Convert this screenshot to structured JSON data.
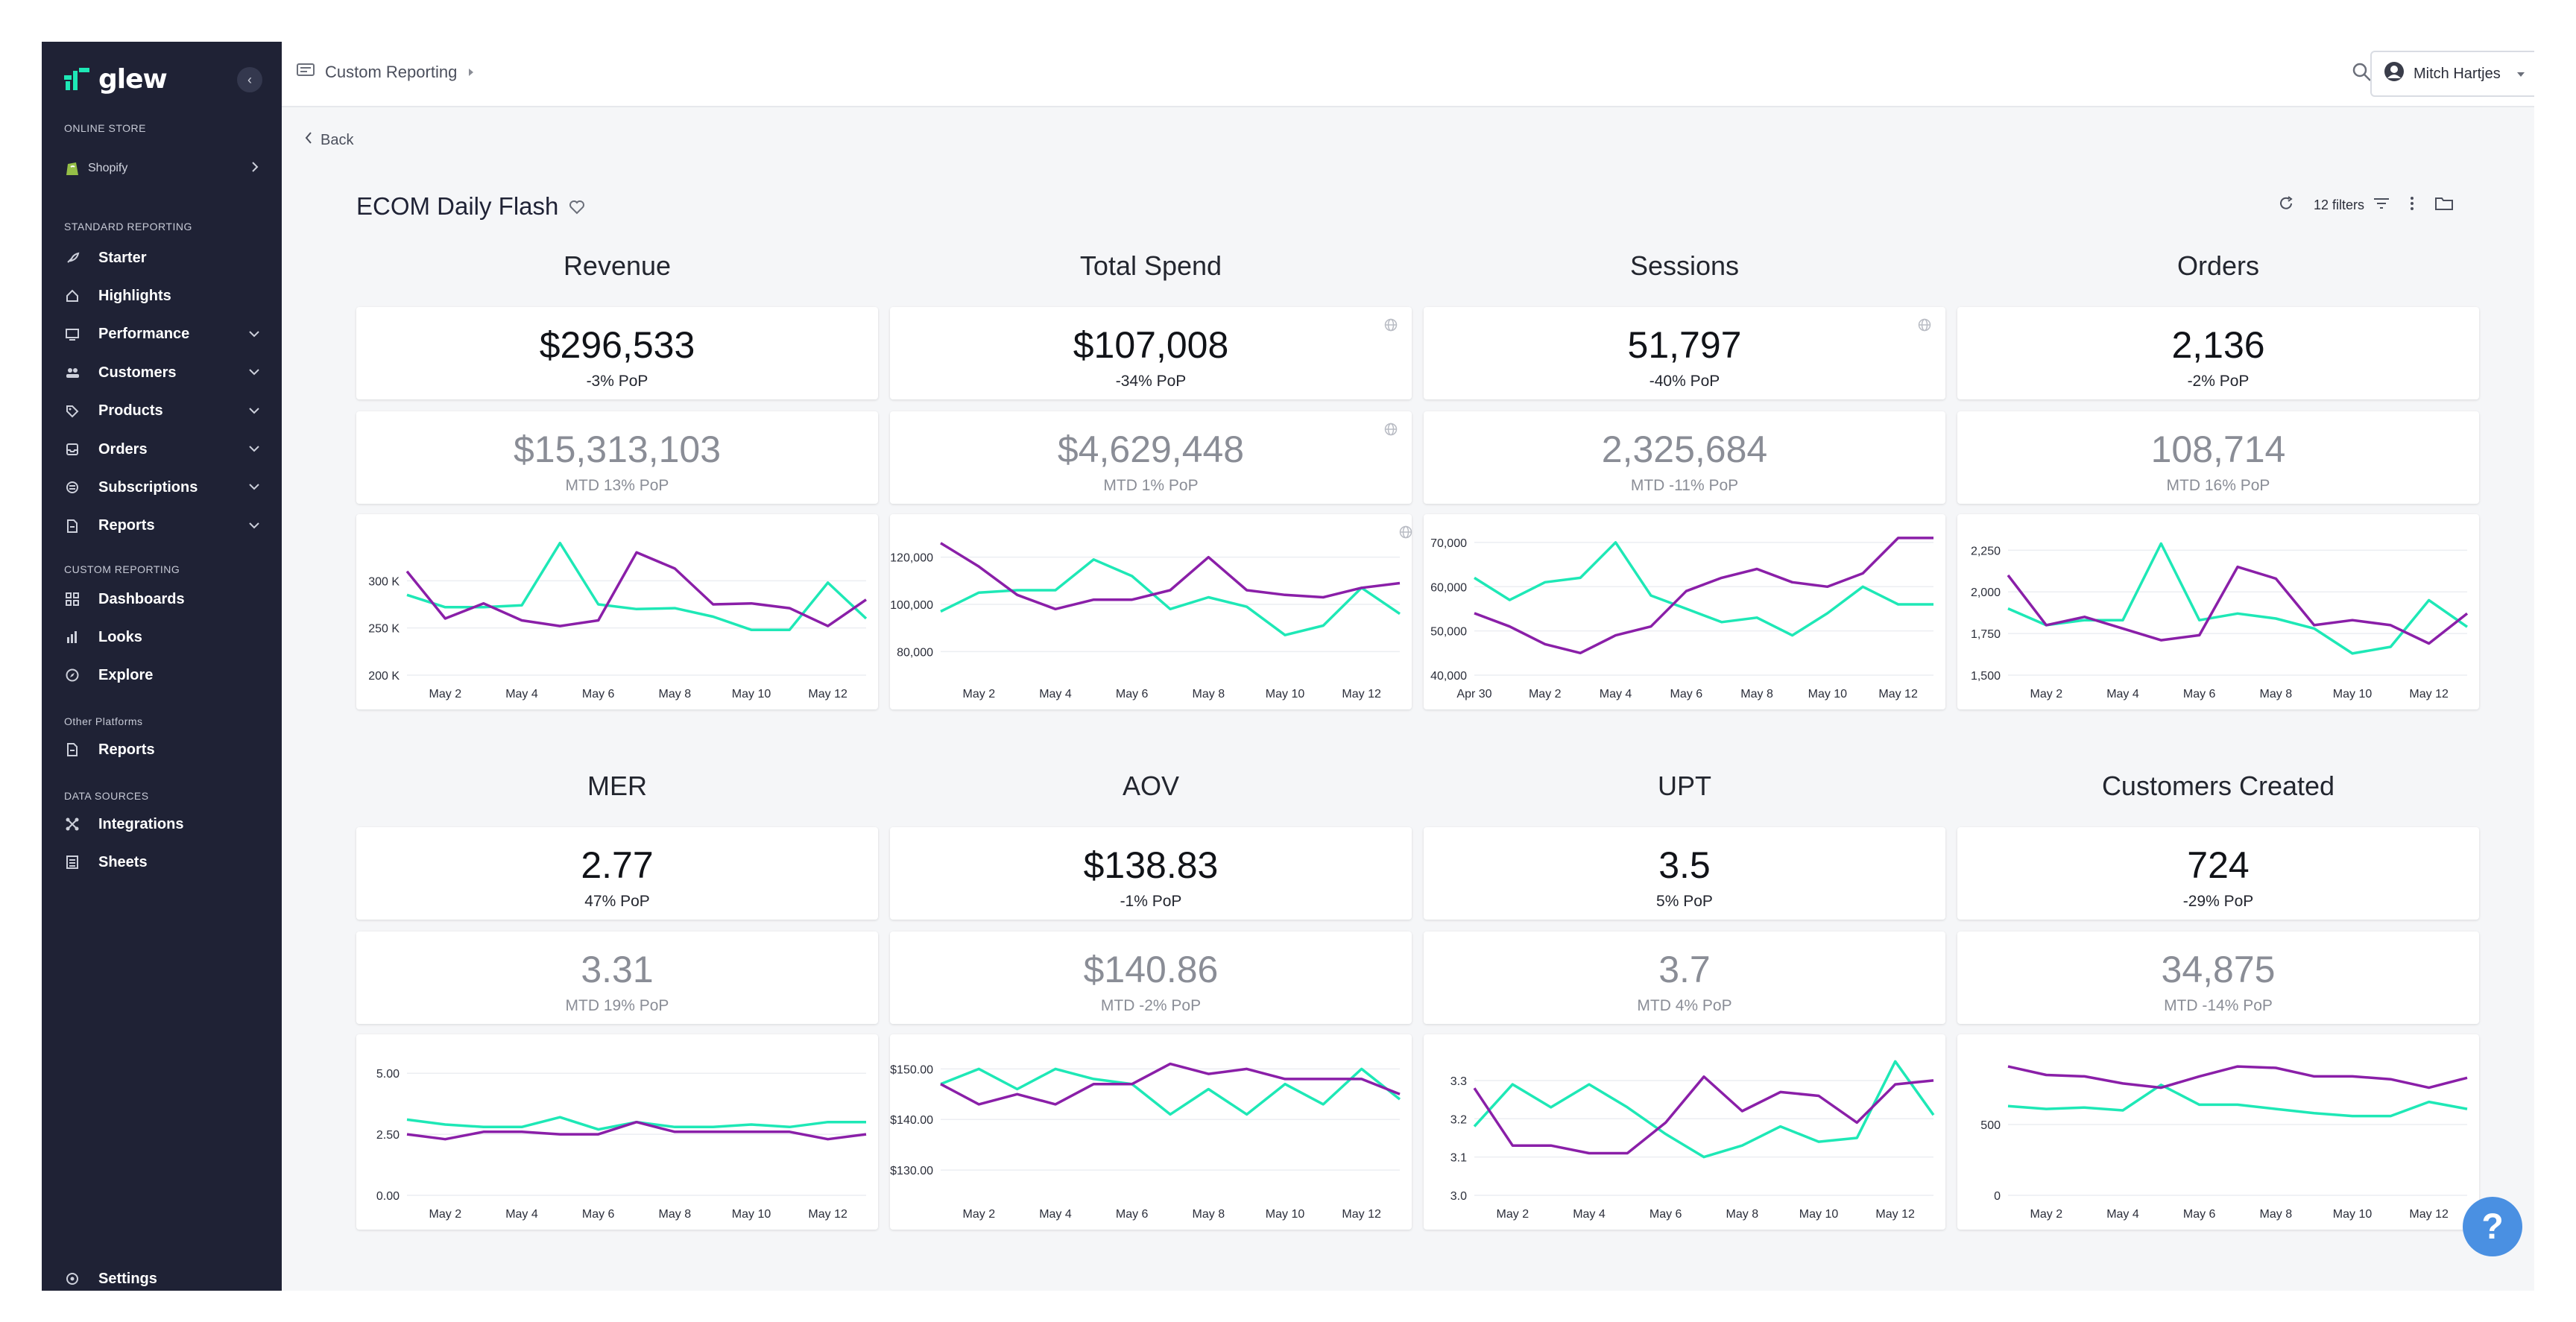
{
  "app": {
    "name": "glew"
  },
  "sidebar": {
    "online_store_label": "ONLINE STORE",
    "store_name": "Shopify",
    "standard_label": "STANDARD REPORTING",
    "standard_items": [
      {
        "label": "Starter",
        "icon": "rocket-icon"
      },
      {
        "label": "Highlights",
        "icon": "home-icon"
      },
      {
        "label": "Performance",
        "icon": "monitor-icon"
      },
      {
        "label": "Customers",
        "icon": "people-icon"
      },
      {
        "label": "Products",
        "icon": "tag-icon"
      },
      {
        "label": "Orders",
        "icon": "inbox-icon"
      },
      {
        "label": "Subscriptions",
        "icon": "subscriptions-icon"
      },
      {
        "label": "Reports",
        "icon": "document-icon"
      }
    ],
    "custom_label": "CUSTOM REPORTING",
    "custom_items": [
      {
        "label": "Dashboards",
        "icon": "grid-icon"
      },
      {
        "label": "Looks",
        "icon": "bar-chart-icon"
      },
      {
        "label": "Explore",
        "icon": "compass-icon"
      }
    ],
    "other_label": "Other Platforms",
    "other_items": [
      {
        "label": "Reports",
        "icon": "document-icon"
      }
    ],
    "data_label": "DATA SOURCES",
    "data_items": [
      {
        "label": "Integrations",
        "icon": "integrations-icon"
      },
      {
        "label": "Sheets",
        "icon": "sheet-icon"
      }
    ],
    "settings_label": "Settings"
  },
  "topbar": {
    "breadcrumb": "Custom Reporting",
    "user_name": "Mitch Hartjes"
  },
  "content": {
    "back_label": "Back",
    "dashboard_title": "ECOM Daily Flash",
    "filters_label": "12 filters"
  },
  "metrics": [
    {
      "title": "Revenue",
      "value": "$296,533",
      "pop": "-3% PoP",
      "mtd_value": "$15,313,103",
      "mtd_pop": "MTD 13% PoP"
    },
    {
      "title": "Total Spend",
      "value": "$107,008",
      "pop": "-34% PoP",
      "mtd_value": "$4,629,448",
      "mtd_pop": "MTD 1% PoP"
    },
    {
      "title": "Sessions",
      "value": "51,797",
      "pop": "-40% PoP",
      "mtd_value": "2,325,684",
      "mtd_pop": "MTD -11% PoP"
    },
    {
      "title": "Orders",
      "value": "2,136",
      "pop": "-2% PoP",
      "mtd_value": "108,714",
      "mtd_pop": "MTD 16% PoP"
    },
    {
      "title": "MER",
      "value": "2.77",
      "pop": "47% PoP",
      "mtd_value": "3.31",
      "mtd_pop": "MTD 19% PoP"
    },
    {
      "title": "AOV",
      "value": "$138.83",
      "pop": "-1% PoP",
      "mtd_value": "$140.86",
      "mtd_pop": "MTD -2% PoP"
    },
    {
      "title": "UPT",
      "value": "3.5",
      "pop": "5% PoP",
      "mtd_value": "3.7",
      "mtd_pop": "MTD 4% PoP"
    },
    {
      "title": "Customers Created",
      "value": "724",
      "pop": "-29% PoP",
      "mtd_value": "34,875",
      "mtd_pop": "MTD -14% PoP"
    }
  ],
  "colors": {
    "current": "#1ee8b6",
    "previous": "#8a1fa8",
    "sidebar": "#1f2235",
    "help": "#4a90e2"
  },
  "chart_data": [
    {
      "type": "line",
      "title": "Revenue",
      "x": [
        "May 1",
        "May 2",
        "May 3",
        "May 4",
        "May 5",
        "May 6",
        "May 7",
        "May 8",
        "May 9",
        "May 10",
        "May 11",
        "May 12",
        "May 13"
      ],
      "xticks": [
        "May 2",
        "May 4",
        "May 6",
        "May 8",
        "May 10",
        "May 12"
      ],
      "ylim": [
        200000,
        350000
      ],
      "yticks": [
        {
          "v": 300000,
          "t": "300 K"
        },
        {
          "v": 250000,
          "t": "250 K"
        },
        {
          "v": 200000,
          "t": "200 K"
        }
      ],
      "series": [
        {
          "values": [
            285000,
            272000,
            272000,
            274000,
            340000,
            275000,
            270000,
            271000,
            262000,
            248000,
            248000,
            298000,
            260000
          ]
        },
        {
          "values": [
            310000,
            260000,
            276000,
            258000,
            252000,
            258000,
            330000,
            313000,
            275000,
            276000,
            271000,
            252000,
            280000
          ]
        }
      ]
    },
    {
      "type": "line",
      "title": "Total Spend",
      "x": [
        "May 1",
        "May 2",
        "May 3",
        "May 4",
        "May 5",
        "May 6",
        "May 7",
        "May 8",
        "May 9",
        "May 10",
        "May 11",
        "May 12",
        "May 13"
      ],
      "xticks": [
        "May 2",
        "May 4",
        "May 6",
        "May 8",
        "May 10",
        "May 12"
      ],
      "ylim": [
        70000,
        130000
      ],
      "yticks": [
        {
          "v": 120000,
          "t": "120,000"
        },
        {
          "v": 100000,
          "t": "100,000"
        },
        {
          "v": 80000,
          "t": "80,000"
        }
      ],
      "series": [
        {
          "values": [
            97000,
            105000,
            106000,
            106000,
            119000,
            112000,
            98000,
            103000,
            99000,
            87000,
            91000,
            107000,
            96000
          ]
        },
        {
          "values": [
            126000,
            116000,
            104000,
            98000,
            102000,
            102000,
            106000,
            120000,
            106000,
            104000,
            103000,
            107000,
            109000
          ]
        }
      ]
    },
    {
      "type": "line",
      "title": "Sessions",
      "x": [
        "Apr 30",
        "May 1",
        "May 2",
        "May 3",
        "May 4",
        "May 5",
        "May 6",
        "May 7",
        "May 8",
        "May 9",
        "May 10",
        "May 11",
        "May 12",
        "May 13"
      ],
      "xticks": [
        "Apr 30",
        "May 2",
        "May 4",
        "May 6",
        "May 8",
        "May 10",
        "May 12"
      ],
      "ylim": [
        40000,
        72000
      ],
      "yticks": [
        {
          "v": 70000,
          "t": "70,000"
        },
        {
          "v": 60000,
          "t": "60,000"
        },
        {
          "v": 50000,
          "t": "50,000"
        },
        {
          "v": 40000,
          "t": "40,000"
        }
      ],
      "series": [
        {
          "values": [
            62000,
            57000,
            61000,
            62000,
            70000,
            58000,
            55000,
            52000,
            53000,
            49000,
            54000,
            60000,
            56000,
            56000
          ]
        },
        {
          "values": [
            54000,
            51000,
            47000,
            45000,
            49000,
            51000,
            59000,
            62000,
            64000,
            61000,
            60000,
            63000,
            71000,
            71000
          ]
        }
      ]
    },
    {
      "type": "line",
      "title": "Orders",
      "x": [
        "May 1",
        "May 2",
        "May 3",
        "May 4",
        "May 5",
        "May 6",
        "May 7",
        "May 8",
        "May 9",
        "May 10",
        "May 11",
        "May 12",
        "May 13"
      ],
      "xticks": [
        "May 2",
        "May 4",
        "May 6",
        "May 8",
        "May 10",
        "May 12"
      ],
      "ylim": [
        1500,
        2350
      ],
      "yticks": [
        {
          "v": 2250,
          "t": "2,250"
        },
        {
          "v": 2000,
          "t": "2,000"
        },
        {
          "v": 1750,
          "t": "1,750"
        },
        {
          "v": 1500,
          "t": "1,500"
        }
      ],
      "series": [
        {
          "values": [
            1900,
            1800,
            1830,
            1830,
            2290,
            1830,
            1870,
            1840,
            1780,
            1630,
            1670,
            1950,
            1790
          ]
        },
        {
          "values": [
            2100,
            1800,
            1850,
            1780,
            1710,
            1740,
            2150,
            2080,
            1800,
            1830,
            1800,
            1690,
            1870
          ]
        }
      ]
    },
    {
      "type": "line",
      "title": "MER",
      "x": [
        "May 1",
        "May 2",
        "May 3",
        "May 4",
        "May 5",
        "May 6",
        "May 7",
        "May 8",
        "May 9",
        "May 10",
        "May 11",
        "May 12",
        "May 13"
      ],
      "xticks": [
        "May 2",
        "May 4",
        "May 6",
        "May 8",
        "May 10",
        "May 12"
      ],
      "ylim": [
        0,
        5.8
      ],
      "yticks": [
        {
          "v": 5,
          "t": "5.00"
        },
        {
          "v": 2.5,
          "t": "2.50"
        },
        {
          "v": 0,
          "t": "0.00"
        }
      ],
      "series": [
        {
          "values": [
            3.1,
            2.9,
            2.8,
            2.8,
            3.2,
            2.7,
            3.0,
            2.8,
            2.8,
            2.9,
            2.8,
            3.0,
            3.0
          ]
        },
        {
          "values": [
            2.5,
            2.3,
            2.6,
            2.6,
            2.5,
            2.5,
            3.0,
            2.6,
            2.6,
            2.6,
            2.6,
            2.3,
            2.5
          ]
        }
      ]
    },
    {
      "type": "line",
      "title": "AOV",
      "x": [
        "May 1",
        "May 2",
        "May 3",
        "May 4",
        "May 5",
        "May 6",
        "May 7",
        "May 8",
        "May 9",
        "May 10",
        "May 11",
        "May 12",
        "May 13"
      ],
      "xticks": [
        "May 2",
        "May 4",
        "May 6",
        "May 8",
        "May 10",
        "May 12"
      ],
      "ylim": [
        125,
        153
      ],
      "yticks": [
        {
          "v": 150,
          "t": "$150.00"
        },
        {
          "v": 140,
          "t": "$140.00"
        },
        {
          "v": 130,
          "t": "$130.00"
        }
      ],
      "series": [
        {
          "values": [
            147,
            150,
            146,
            150,
            148,
            147,
            141,
            146,
            141,
            147,
            143,
            150,
            144
          ]
        },
        {
          "values": [
            147,
            143,
            145,
            143,
            147,
            147,
            151,
            149,
            150,
            148,
            148,
            148,
            145
          ]
        }
      ]
    },
    {
      "type": "line",
      "title": "UPT",
      "x": [
        "May 1",
        "May 2",
        "May 3",
        "May 4",
        "May 5",
        "May 6",
        "May 7",
        "May 8",
        "May 9",
        "May 10",
        "May 11",
        "May 12",
        "May 13"
      ],
      "xticks": [
        "May 2",
        "May 4",
        "May 6",
        "May 8",
        "May 10",
        "May 12"
      ],
      "ylim": [
        3.0,
        3.37
      ],
      "yticks": [
        {
          "v": 3.3,
          "t": "3.3"
        },
        {
          "v": 3.2,
          "t": "3.2"
        },
        {
          "v": 3.1,
          "t": "3.1"
        },
        {
          "v": 3.0,
          "t": "3.0"
        }
      ],
      "series": [
        {
          "values": [
            3.18,
            3.29,
            3.23,
            3.29,
            3.23,
            3.16,
            3.1,
            3.13,
            3.18,
            3.14,
            3.15,
            3.35,
            3.21
          ]
        },
        {
          "values": [
            3.28,
            3.13,
            3.13,
            3.11,
            3.11,
            3.19,
            3.31,
            3.22,
            3.27,
            3.26,
            3.19,
            3.29,
            3.3
          ]
        }
      ]
    },
    {
      "type": "line",
      "title": "Customers Created",
      "x": [
        "May 1",
        "May 2",
        "May 3",
        "May 4",
        "May 5",
        "May 6",
        "May 7",
        "May 8",
        "May 9",
        "May 10",
        "May 11",
        "May 12",
        "May 13"
      ],
      "xticks": [
        "May 2",
        "May 4",
        "May 6",
        "May 8",
        "May 10",
        "May 12"
      ],
      "ylim": [
        0,
        1000
      ],
      "yticks": [
        {
          "v": 500,
          "t": "500"
        },
        {
          "v": 0,
          "t": "0"
        }
      ],
      "series": [
        {
          "values": [
            630,
            610,
            620,
            600,
            780,
            640,
            640,
            610,
            580,
            560,
            560,
            660,
            610
          ]
        },
        {
          "values": [
            910,
            850,
            840,
            790,
            760,
            840,
            910,
            900,
            840,
            840,
            820,
            760,
            830
          ]
        }
      ]
    }
  ]
}
